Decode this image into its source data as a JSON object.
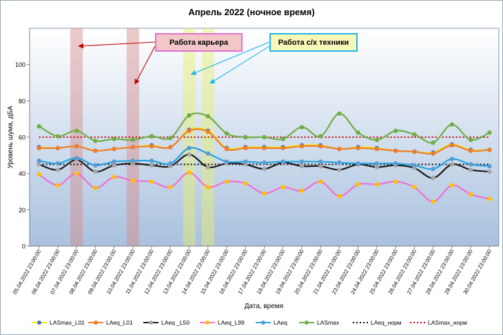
{
  "chart_data": {
    "type": "line",
    "title": "Апрель 2022 (ночное время)",
    "xlabel": "Дата, время",
    "ylabel": "Уровень шума, дБА",
    "ylim": [
      0,
      120
    ],
    "yticks": [
      0,
      20,
      40,
      60,
      80,
      100
    ],
    "grid": false,
    "legend_position": "bottom",
    "categories": [
      "05.04.2022 23:00:00",
      "06.04.2022 23:00:00",
      "07.04.2022 23:00:00",
      "08.04.2022 23:00:00",
      "09.04.2022 23:00:00",
      "10.04.2022 23:00:00",
      "11.04.2022 23:00:00",
      "12.04.2022 23:00:00",
      "13.04.2022 23:00:00",
      "14.04.2022 23:00:00",
      "15.04.2022 23:00:00",
      "16.04.2022 23:00:00",
      "17.04.2022 23:00:00",
      "18.04.2022 23:00:00",
      "19.04.2022 23:00:00",
      "20.04.2022 23:00:00",
      "21.04.2022 23:00:00",
      "23.04.2022 23:00:00",
      "24.04.2022 23:00:00",
      "25.04.2022 23:00:00",
      "26.04.2022 23:00:00",
      "27.04.2022 23:00:00",
      "28.04.2022 23:00:00",
      "29.04.2022 23:00:00",
      "30.04.2022 23:00:00"
    ],
    "series": [
      {
        "name": "LASmax_L01",
        "color": "#f5e60a",
        "marker": "#4472c4",
        "dashed": false,
        "values": [
          54.5,
          54,
          55,
          52.5,
          53.5,
          54.5,
          55.5,
          54.5,
          64,
          63.5,
          54,
          54.5,
          54.5,
          54.5,
          55.5,
          55.5,
          53.5,
          54.5,
          54,
          52.5,
          52,
          51.5,
          56,
          53,
          53
        ]
      },
      {
        "name": "LAeq_L01",
        "color": "#ed7d31",
        "marker": "#ed7d31",
        "dashed": false,
        "values": [
          54,
          54,
          55,
          52.5,
          53.5,
          54.5,
          55,
          54.5,
          63.5,
          63,
          53.5,
          54,
          54,
          54,
          55,
          55,
          53.5,
          54,
          53.5,
          52.5,
          52,
          51,
          55.5,
          52.5,
          53
        ]
      },
      {
        "name": "LAeq _L50",
        "color": "#1a1a1a",
        "marker": "#a5a5a5",
        "dashed": false,
        "values": [
          45,
          42,
          47.5,
          41,
          44.5,
          45.5,
          44.5,
          44,
          50.5,
          43.5,
          45.5,
          45,
          42.5,
          46,
          44,
          44,
          42,
          45,
          43.5,
          44.5,
          43,
          37.5,
          45,
          42,
          41
        ]
      },
      {
        "name": "LAeq_L99",
        "color": "#f06ed2",
        "marker": "#ffc000",
        "dashed": false,
        "values": [
          39.5,
          33.5,
          40,
          32,
          38,
          36,
          35.5,
          32.5,
          40.5,
          32.5,
          35.5,
          34.5,
          29,
          32.5,
          30.5,
          35.5,
          27.5,
          34,
          34,
          35.5,
          32.5,
          24.5,
          33.5,
          28.5,
          26
        ]
      },
      {
        "name": "LAeq",
        "color": "#23a3e0",
        "marker": "#5b9bd5",
        "dashed": false,
        "values": [
          47,
          45.5,
          48.5,
          44.5,
          46.5,
          47,
          47,
          45.5,
          54,
          51,
          46.5,
          46.5,
          46,
          46.5,
          46.5,
          46.5,
          46,
          45.5,
          45.5,
          45.5,
          44.5,
          42.5,
          48,
          45,
          44
        ]
      },
      {
        "name": "LASmax",
        "color": "#70ad47",
        "marker": "#70ad47",
        "dashed": false,
        "values": [
          66,
          60.5,
          63.5,
          58,
          59,
          58.5,
          60.5,
          59.5,
          72,
          71.5,
          62,
          60,
          60,
          59,
          65.5,
          60.5,
          73,
          62.5,
          58.5,
          63.5,
          61.5,
          57,
          67,
          58.5,
          62.5
        ]
      },
      {
        "name": "LAeq_норм",
        "color": "#000000",
        "marker": null,
        "dashed": true,
        "values": [
          45,
          45,
          45,
          45,
          45,
          45,
          45,
          45,
          45,
          45,
          45,
          45,
          45,
          45,
          45,
          45,
          45,
          45,
          45,
          45,
          45,
          45,
          45,
          45,
          45
        ]
      },
      {
        "name": "LASmax_норм",
        "color": "#c00000",
        "marker": null,
        "dashed": true,
        "values": [
          60,
          60,
          60,
          60,
          60,
          60,
          60,
          60,
          60,
          60,
          60,
          60,
          60,
          60,
          60,
          60,
          60,
          60,
          60,
          60,
          60,
          60,
          60,
          60,
          60
        ]
      }
    ],
    "highlights": [
      {
        "category": "07.04.2022 23:00:00",
        "color": "#d88a8a"
      },
      {
        "category": "10.04.2022 23:00:00",
        "color": "#d88a8a"
      },
      {
        "category": "13.04.2022 23:00:00",
        "color": "#e8f06a"
      },
      {
        "category": "14.04.2022 23:00:00",
        "color": "#e8f06a"
      }
    ],
    "annotations": [
      {
        "id": "quarry",
        "text": "Работа карьера",
        "fill": "#f3c7c7",
        "border": "#e06fd4",
        "arrow_color": "#c00000",
        "targets": [
          "07.04.2022 23:00:00",
          "10.04.2022 23:00:00"
        ]
      },
      {
        "id": "agri",
        "text": "Работа с/х техники",
        "fill": "#f8f7b7",
        "border": "#1fb7e6",
        "arrow_color": "#1fb7e6",
        "targets": [
          "13.04.2022 23:00:00",
          "14.04.2022 23:00:00"
        ]
      }
    ]
  }
}
